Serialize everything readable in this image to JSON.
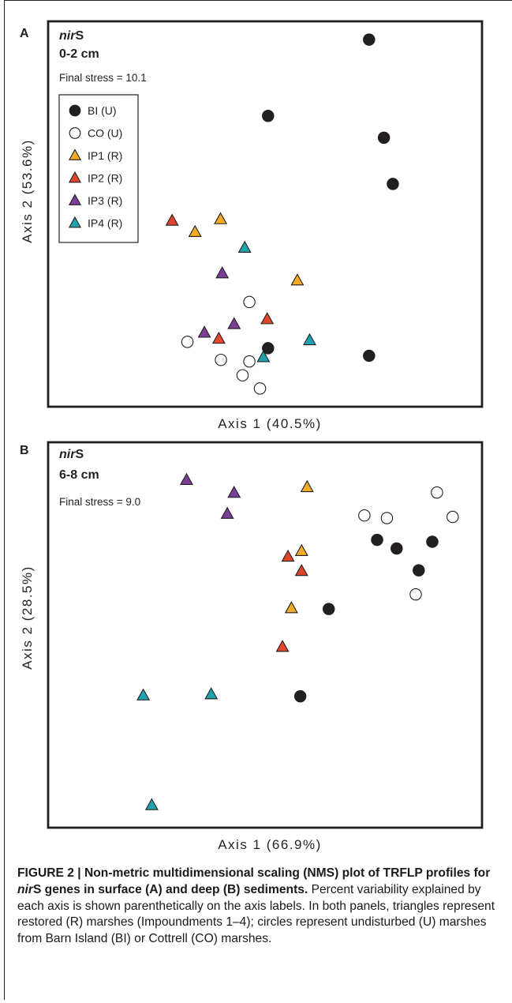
{
  "figure": {
    "caption": {
      "label": "FIGURE 2 | ",
      "bold1": "Non-metric multidimensional scaling (NMS) plot of TRFLP profiles for ",
      "italic": "nir",
      "bold2": "S genes in surface (A) and deep (B) sediments.",
      "rest": " Percent variability explained by each axis is shown parenthetically on the axis labels. In both panels, triangles represent restored (R) marshes (Impoundments 1–4); circles represent undisturbed (U) marshes from Barn Island (BI) or Cottrell (CO) marshes."
    }
  },
  "colors": {
    "BI": "#231f20",
    "CO": "#ffffff",
    "IP1": "#f2ab25",
    "IP2": "#e0472a",
    "IP3": "#7a3e97",
    "IP4": "#1fa3ae"
  },
  "chart_data": [
    {
      "type": "scatter",
      "panel_letter": "A",
      "gene_italic": "nir",
      "gene_rest": "S",
      "depth": "0-2 cm",
      "stress": "Final stress = 10.1",
      "xlabel": "Axis  1 (40.5%)",
      "ylabel": "Axis  2 (53.6%)",
      "axes_ticks": false,
      "grid": false,
      "legend_position": "top-left",
      "xlim": [
        0,
        100
      ],
      "ylim": [
        0,
        100
      ],
      "series": [
        {
          "name": "BI (U)",
          "marker": "circle",
          "key": "BI",
          "points": [
            [
              74.5,
              96.4
            ],
            [
              50.7,
              76.1
            ],
            [
              78.0,
              70.3
            ],
            [
              80.1,
              58.0
            ],
            [
              50.7,
              14.3
            ],
            [
              74.5,
              12.3
            ]
          ]
        },
        {
          "name": "CO (U)",
          "marker": "circle",
          "key": "CO",
          "points": [
            [
              46.3,
              26.6
            ],
            [
              31.7,
              16.0
            ],
            [
              39.6,
              11.2
            ],
            [
              46.3,
              10.8
            ],
            [
              44.7,
              7.1
            ],
            [
              48.8,
              3.6
            ]
          ]
        },
        {
          "name": "IP1 (R)",
          "marker": "triangle",
          "key": "IP1",
          "points": [
            [
              39.5,
              48.6
            ],
            [
              33.5,
              45.2
            ],
            [
              57.6,
              32.3
            ]
          ]
        },
        {
          "name": "IP2 (R)",
          "marker": "triangle",
          "key": "IP2",
          "points": [
            [
              28.1,
              48.2
            ],
            [
              50.5,
              22.0
            ],
            [
              39.1,
              16.8
            ]
          ]
        },
        {
          "name": "IP3 (R)",
          "marker": "triangle",
          "key": "IP3",
          "points": [
            [
              39.9,
              34.2
            ],
            [
              42.7,
              20.7
            ],
            [
              35.7,
              18.4
            ]
          ]
        },
        {
          "name": "IP4 (R)",
          "marker": "triangle",
          "key": "IP4",
          "points": [
            [
              45.2,
              41.0
            ],
            [
              60.5,
              16.4
            ],
            [
              49.6,
              11.9
            ]
          ]
        }
      ]
    },
    {
      "type": "scatter",
      "panel_letter": "B",
      "gene_italic": "nir",
      "gene_rest": "S",
      "depth": "6-8 cm",
      "stress": "Final stress = 9.0",
      "xlabel": "Axis  1 (66.9%)",
      "ylabel": "Axis  2 (28.5%)",
      "axes_ticks": false,
      "grid": false,
      "legend_position": "none",
      "xlim": [
        0,
        100
      ],
      "ylim": [
        0,
        100
      ],
      "series": [
        {
          "name": "BI (U)",
          "marker": "circle",
          "key": "BI",
          "points": [
            [
              76.4,
              75.3
            ],
            [
              81.0,
              73.0
            ],
            [
              89.4,
              74.8
            ],
            [
              86.2,
              67.2
            ],
            [
              65.0,
              56.9
            ],
            [
              58.3,
              33.7
            ]
          ]
        },
        {
          "name": "CO (U)",
          "marker": "circle",
          "key": "CO",
          "points": [
            [
              90.5,
              87.9
            ],
            [
              73.4,
              81.8
            ],
            [
              78.7,
              81.1
            ],
            [
              94.2,
              81.4
            ],
            [
              85.5,
              60.8
            ]
          ]
        },
        {
          "name": "IP1 (R)",
          "marker": "triangle",
          "key": "IP1",
          "points": [
            [
              59.9,
              89.3
            ],
            [
              58.6,
              72.3
            ],
            [
              56.2,
              57.1
            ]
          ]
        },
        {
          "name": "IP2 (R)",
          "marker": "triangle",
          "key": "IP2",
          "points": [
            [
              55.4,
              70.8
            ],
            [
              58.6,
              67.0
            ],
            [
              54.1,
              46.8
            ]
          ]
        },
        {
          "name": "IP3 (R)",
          "marker": "triangle",
          "key": "IP3",
          "points": [
            [
              31.5,
              91.2
            ],
            [
              42.7,
              87.8
            ],
            [
              41.1,
              82.2
            ]
          ]
        },
        {
          "name": "IP4 (R)",
          "marker": "triangle",
          "key": "IP4",
          "points": [
            [
              21.3,
              33.9
            ],
            [
              37.3,
              34.2
            ],
            [
              23.3,
              4.7
            ]
          ]
        }
      ]
    }
  ]
}
